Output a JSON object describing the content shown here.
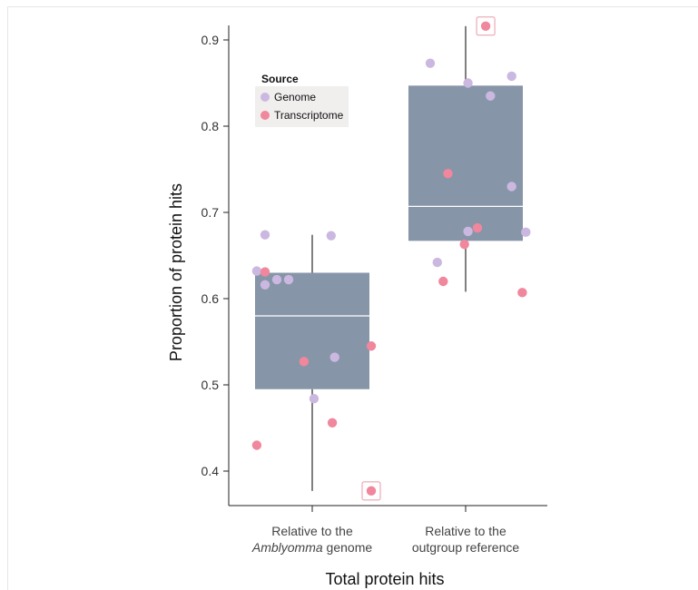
{
  "chart_data": {
    "type": "box",
    "xlabel": "Total protein hits",
    "ylabel": "Proportion of protein hits",
    "ylim": [
      0.37,
      0.92
    ],
    "yticks": [
      "0.4",
      "0.5",
      "0.6",
      "0.7",
      "0.8",
      "0.9"
    ],
    "categories": [
      {
        "line1": "Relative to the",
        "line2_italic": "Amblyomma",
        "line2_rest": " genome"
      },
      {
        "line1": "Relative to the",
        "line2": "outgroup reference"
      }
    ],
    "legend": {
      "title": "Source",
      "items": [
        {
          "name": "Genome",
          "color": "#cbb8e0"
        },
        {
          "name": "Transcriptome",
          "color": "#f0879c"
        }
      ],
      "placement": "top-left"
    },
    "box_color": "#8795a8",
    "boxes": [
      {
        "category": 0,
        "whisker_low": 0.377,
        "q1": 0.495,
        "median": 0.58,
        "q3": 0.63,
        "whisker_high": 0.674
      },
      {
        "category": 1,
        "whisker_low": 0.608,
        "q1": 0.667,
        "median": 0.707,
        "q3": 0.847,
        "whisker_high": 0.916
      }
    ],
    "series": [
      {
        "name": "Genome",
        "points": [
          {
            "cat": 0,
            "jitter": -0.47,
            "y": 0.632
          },
          {
            "cat": 0,
            "jitter": -0.4,
            "y": 0.674
          },
          {
            "cat": 0,
            "jitter": -0.4,
            "y": 0.616
          },
          {
            "cat": 0,
            "jitter": -0.3,
            "y": 0.622
          },
          {
            "cat": 0,
            "jitter": -0.2,
            "y": 0.622
          },
          {
            "cat": 0,
            "jitter": 0.015,
            "y": 0.484
          },
          {
            "cat": 0,
            "jitter": 0.16,
            "y": 0.673
          },
          {
            "cat": 0,
            "jitter": 0.19,
            "y": 0.532
          },
          {
            "cat": 1,
            "jitter": -0.3,
            "y": 0.873
          },
          {
            "cat": 1,
            "jitter": -0.24,
            "y": 0.642
          },
          {
            "cat": 1,
            "jitter": 0.02,
            "y": 0.85
          },
          {
            "cat": 1,
            "jitter": 0.02,
            "y": 0.678
          },
          {
            "cat": 1,
            "jitter": 0.21,
            "y": 0.835
          },
          {
            "cat": 1,
            "jitter": 0.39,
            "y": 0.858
          },
          {
            "cat": 1,
            "jitter": 0.39,
            "y": 0.73
          },
          {
            "cat": 1,
            "jitter": 0.51,
            "y": 0.677
          }
        ]
      },
      {
        "name": "Transcriptome",
        "points": [
          {
            "cat": 0,
            "jitter": -0.4,
            "y": 0.631
          },
          {
            "cat": 0,
            "jitter": -0.47,
            "y": 0.43
          },
          {
            "cat": 0,
            "jitter": -0.07,
            "y": 0.527
          },
          {
            "cat": 0,
            "jitter": 0.17,
            "y": 0.456
          },
          {
            "cat": 0,
            "jitter": 0.5,
            "y": 0.545
          },
          {
            "cat": 0,
            "jitter": 0.5,
            "y": 0.377,
            "outlier": true
          },
          {
            "cat": 1,
            "jitter": -0.15,
            "y": 0.745
          },
          {
            "cat": 1,
            "jitter": -0.19,
            "y": 0.62
          },
          {
            "cat": 1,
            "jitter": -0.01,
            "y": 0.663
          },
          {
            "cat": 1,
            "jitter": 0.1,
            "y": 0.682
          },
          {
            "cat": 1,
            "jitter": 0.17,
            "y": 0.916,
            "outlier": true
          },
          {
            "cat": 1,
            "jitter": 0.48,
            "y": 0.607
          }
        ]
      }
    ]
  }
}
